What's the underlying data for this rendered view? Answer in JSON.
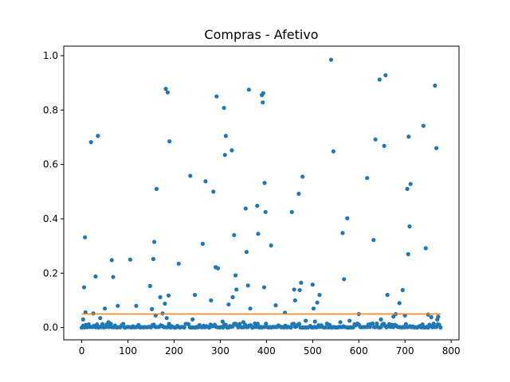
{
  "chart_data": {
    "type": "scatter",
    "title": "Compras - Afetivo",
    "xlabel": "",
    "ylabel": "",
    "xlim": [
      -39,
      817
    ],
    "ylim": [
      -0.045,
      1.035
    ],
    "x_ticks": [
      0,
      100,
      200,
      300,
      400,
      500,
      600,
      700,
      800
    ],
    "y_ticks": [
      0.0,
      0.2,
      0.4,
      0.6,
      0.8,
      1.0
    ],
    "y_tick_labels": [
      "0.0",
      "0.2",
      "0.4",
      "0.6",
      "0.8",
      "1.0"
    ],
    "grid": false,
    "colors": {
      "points": "#1f77b4",
      "line": "#ff7f0e"
    },
    "series": [
      {
        "type": "scatter",
        "points": [
          [
            3,
            0.03
          ],
          [
            5,
            0.148
          ],
          [
            7,
            0.332
          ],
          [
            8,
            0.056
          ],
          [
            20,
            0.682
          ],
          [
            25,
            0.052
          ],
          [
            30,
            0.188
          ],
          [
            35,
            0.705
          ],
          [
            40,
            0.035
          ],
          [
            50,
            0.07
          ],
          [
            58,
            0.02
          ],
          [
            65,
            0.248
          ],
          [
            68,
            0.186
          ],
          [
            78,
            0.08
          ],
          [
            105,
            0.25
          ],
          [
            118,
            0.08
          ],
          [
            148,
            0.153
          ],
          [
            152,
            0.068
          ],
          [
            155,
            0.252
          ],
          [
            157,
            0.315
          ],
          [
            160,
            0.045
          ],
          [
            162,
            0.51
          ],
          [
            170,
            0.112
          ],
          [
            175,
            0.052
          ],
          [
            180,
            0.088
          ],
          [
            182,
            0.878
          ],
          [
            184,
            0.035
          ],
          [
            186,
            0.865
          ],
          [
            188,
            0.118
          ],
          [
            190,
            0.685
          ],
          [
            210,
            0.235
          ],
          [
            235,
            0.558
          ],
          [
            240,
            0.03
          ],
          [
            245,
            0.12
          ],
          [
            262,
            0.308
          ],
          [
            268,
            0.538
          ],
          [
            280,
            0.1
          ],
          [
            285,
            0.5
          ],
          [
            290,
            0.222
          ],
          [
            292,
            0.85
          ],
          [
            295,
            0.218
          ],
          [
            305,
            0.022
          ],
          [
            308,
            0.808
          ],
          [
            310,
            0.635
          ],
          [
            312,
            0.705
          ],
          [
            318,
            0.085
          ],
          [
            325,
            0.652
          ],
          [
            327,
            0.112
          ],
          [
            330,
            0.34
          ],
          [
            333,
            0.192
          ],
          [
            335,
            0.14
          ],
          [
            350,
            0.02
          ],
          [
            355,
            0.438
          ],
          [
            357,
            0.278
          ],
          [
            360,
            0.155
          ],
          [
            362,
            0.875
          ],
          [
            365,
            0.07
          ],
          [
            380,
            0.448
          ],
          [
            382,
            0.345
          ],
          [
            390,
            0.855
          ],
          [
            392,
            0.828
          ],
          [
            393,
            0.862
          ],
          [
            395,
            0.148
          ],
          [
            396,
            0.532
          ],
          [
            398,
            0.425
          ],
          [
            410,
            0.302
          ],
          [
            420,
            0.082
          ],
          [
            440,
            0.055
          ],
          [
            455,
            0.425
          ],
          [
            460,
            0.14
          ],
          [
            462,
            0.1
          ],
          [
            470,
            0.492
          ],
          [
            472,
            0.138
          ],
          [
            475,
            0.165
          ],
          [
            478,
            0.555
          ],
          [
            485,
            0.025
          ],
          [
            500,
            0.158
          ],
          [
            502,
            0.07
          ],
          [
            505,
            0.022
          ],
          [
            510,
            0.092
          ],
          [
            515,
            0.12
          ],
          [
            540,
            0.985
          ],
          [
            545,
            0.648
          ],
          [
            560,
            0.02
          ],
          [
            565,
            0.348
          ],
          [
            568,
            0.178
          ],
          [
            575,
            0.402
          ],
          [
            580,
            0.025
          ],
          [
            600,
            0.05
          ],
          [
            618,
            0.55
          ],
          [
            632,
            0.322
          ],
          [
            636,
            0.692
          ],
          [
            645,
            0.912
          ],
          [
            648,
            0.03
          ],
          [
            655,
            0.668
          ],
          [
            658,
            0.928
          ],
          [
            662,
            0.12
          ],
          [
            675,
            0.04
          ],
          [
            680,
            0.05
          ],
          [
            688,
            0.09
          ],
          [
            695,
            0.138
          ],
          [
            700,
            0.045
          ],
          [
            705,
            0.51
          ],
          [
            707,
            0.27
          ],
          [
            708,
            0.702
          ],
          [
            710,
            0.372
          ],
          [
            712,
            0.528
          ],
          [
            740,
            0.742
          ],
          [
            745,
            0.292
          ],
          [
            750,
            0.048
          ],
          [
            757,
            0.038
          ],
          [
            765,
            0.89
          ],
          [
            768,
            0.66
          ],
          [
            770,
            0.03
          ],
          [
            772,
            0.04
          ]
        ],
        "baseline": {
          "y": 0.0,
          "x_range": [
            0,
            777
          ],
          "max_jitter": 0.015,
          "note": "dense points near zero across all x"
        }
      },
      {
        "type": "line",
        "x": [
          0,
          777
        ],
        "y": [
          0.05,
          0.05
        ]
      }
    ]
  }
}
